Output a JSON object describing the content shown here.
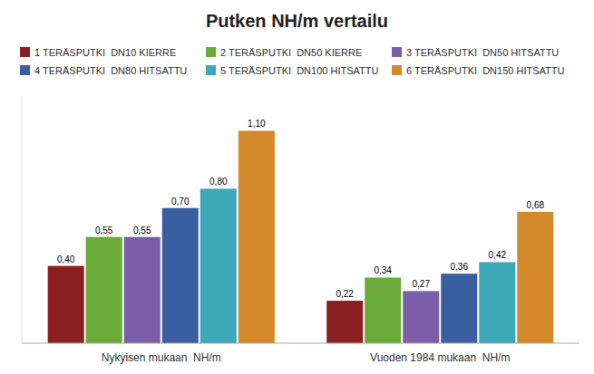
{
  "chart_data": {
    "type": "bar",
    "title": "Putken NH/m vertailu",
    "categories": [
      "Nykyisen mukaan  NH/m",
      "Vuoden 1984 mukaan  NH/m"
    ],
    "series": [
      {
        "name": "1 TERÄSPUTKI  DN10 KIERRE",
        "color": "#8B2020",
        "values": [
          0.4,
          0.22
        ],
        "value_labels": [
          "0,40",
          "0,22"
        ]
      },
      {
        "name": "2 TERÄSPUTKI  DN50 KIERRE",
        "color": "#6AAB3A",
        "values": [
          0.55,
          0.34
        ],
        "value_labels": [
          "0,55",
          "0,34"
        ]
      },
      {
        "name": "3 TERÄSPUTKI  DN50 HITSATTU",
        "color": "#7B5EA7",
        "values": [
          0.55,
          0.27
        ],
        "value_labels": [
          "0,55",
          "0,27"
        ]
      },
      {
        "name": "4 TERÄSPUTKI  DN80 HITSATTU",
        "color": "#3A5FA0",
        "values": [
          0.7,
          0.36
        ],
        "value_labels": [
          "0,70",
          "0,36"
        ]
      },
      {
        "name": "5 TERÄSPUTKI  DN100 HITSATTU",
        "color": "#3DA8B8",
        "values": [
          0.8,
          0.42
        ],
        "value_labels": [
          "0,80",
          "0,42"
        ]
      },
      {
        "name": "6 TERÄSPUTKI  DN150 HITSATTU",
        "color": "#D48A2A",
        "values": [
          1.1,
          0.68
        ],
        "value_labels": [
          "1,10",
          "0,68"
        ]
      }
    ],
    "ylim": [
      0,
      1.28
    ],
    "grid": false,
    "legend": "top",
    "data_labels": true,
    "tick_labels": "x"
  }
}
